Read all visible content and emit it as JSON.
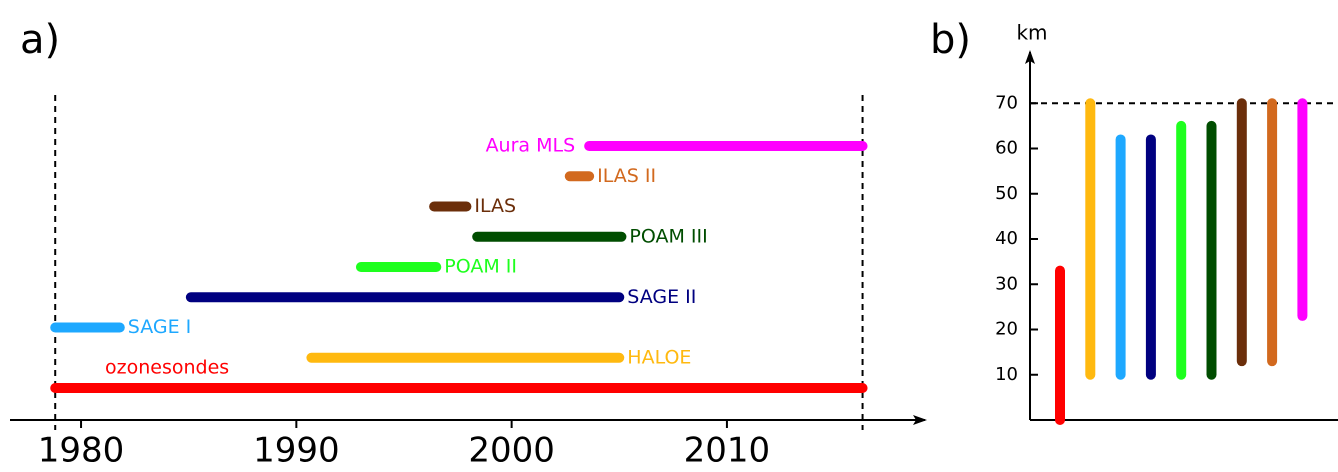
{
  "chart_data": [
    {
      "type": "timeline",
      "label": "a)",
      "categories": [
        "ozonesondes",
        "HALOE",
        "SAGE I",
        "SAGE II",
        "POAM II",
        "POAM III",
        "ILAS",
        "ILAS II",
        "Aura MLS"
      ],
      "colors": [
        "#ff0000",
        "#ffb90f",
        "#1ea8ff",
        "#000080",
        "#1eff1e",
        "#004d00",
        "#6b2e0a",
        "#d2691e",
        "#ff00ff"
      ],
      "start": [
        1978.8,
        1990.7,
        1978.8,
        1985.1,
        1993.0,
        1998.4,
        1996.4,
        2002.7,
        2003.6
      ],
      "end": [
        2016.3,
        2005.0,
        1981.8,
        2005.0,
        1996.5,
        2005.1,
        1997.9,
        2003.6,
        2016.3
      ],
      "xlim": [
        1976.7,
        2019.2
      ],
      "xticks": [
        1980,
        1990,
        2000,
        2010
      ],
      "reference_lines": [
        1978.8,
        2016.3
      ]
    },
    {
      "type": "range",
      "label": "b)",
      "y_label": "km",
      "colors": [
        "#ff0000",
        "#ffb90f",
        "#1ea8ff",
        "#000080",
        "#1eff1e",
        "#004d00",
        "#6b2e0a",
        "#d2691e",
        "#ff00ff"
      ],
      "low": [
        0,
        10,
        10,
        10,
        10,
        10,
        13,
        13,
        23
      ],
      "high": [
        33,
        70,
        62,
        62,
        65,
        65,
        70,
        70,
        70
      ],
      "ylim": [
        0,
        80
      ],
      "yticks": [
        10,
        20,
        30,
        40,
        50,
        60,
        70
      ],
      "reference_line": 70
    }
  ]
}
